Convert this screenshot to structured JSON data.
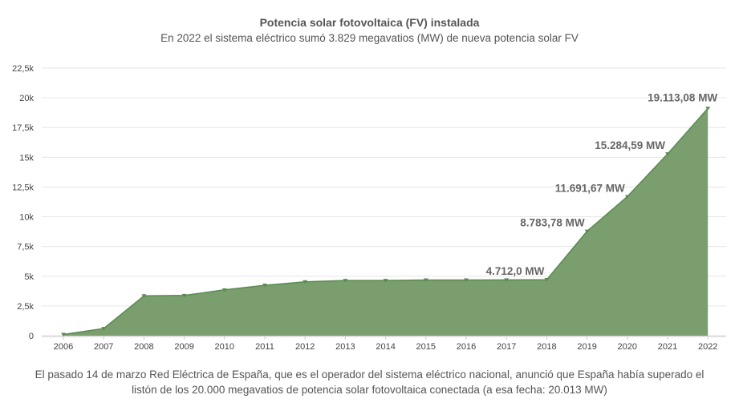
{
  "chart_data": {
    "type": "area",
    "title": "Potencia solar fotovoltaica (FV) instalada",
    "subtitle": "En 2022 el sistema  eléctrico sumó 3.829 megavatios (MW) de nueva potencia solar FV",
    "caption": "El pasado 14 de marzo Red Eléctrica de España, que es el operador del sistema eléctrico nacional, anunció que España había superado el listón de los 20.000 megavatios de potencia solar fotovoltaica conectada (a esa fecha: 20.013 MW)",
    "x": [
      "2006",
      "2007",
      "2008",
      "2009",
      "2010",
      "2011",
      "2012",
      "2013",
      "2014",
      "2015",
      "2016",
      "2017",
      "2018",
      "2019",
      "2020",
      "2021",
      "2022"
    ],
    "series": [
      {
        "values": [
          100,
          600,
          3350,
          3380,
          3850,
          4240,
          4530,
          4640,
          4640,
          4680,
          4680,
          4690,
          4712.0,
          8783.78,
          11691.67,
          15284.59,
          19113.08
        ],
        "color": "#5a8a50"
      }
    ],
    "data_labels": [
      {
        "index": 12,
        "text": "4.712,0 MW"
      },
      {
        "index": 13,
        "text": "8.783,78 MW"
      },
      {
        "index": 14,
        "text": "11.691,67 MW"
      },
      {
        "index": 15,
        "text": "15.284,59 MW"
      },
      {
        "index": 16,
        "text": "19.113,08 MW"
      }
    ],
    "ylim": [
      0,
      22500
    ],
    "yticks": [
      {
        "value": 0,
        "label": "0"
      },
      {
        "value": 2500,
        "label": "2,5k"
      },
      {
        "value": 5000,
        "label": "5k"
      },
      {
        "value": 7500,
        "label": "7,5k"
      },
      {
        "value": 10000,
        "label": "10k"
      },
      {
        "value": 12500,
        "label": "12,5k"
      },
      {
        "value": 15000,
        "label": "15k"
      },
      {
        "value": 17500,
        "label": "17,5k"
      },
      {
        "value": 20000,
        "label": "20k"
      },
      {
        "value": 22500,
        "label": "22,5k"
      }
    ],
    "grid": true,
    "area_color": "#7a9e6e",
    "line_color": "#5a8a50"
  }
}
